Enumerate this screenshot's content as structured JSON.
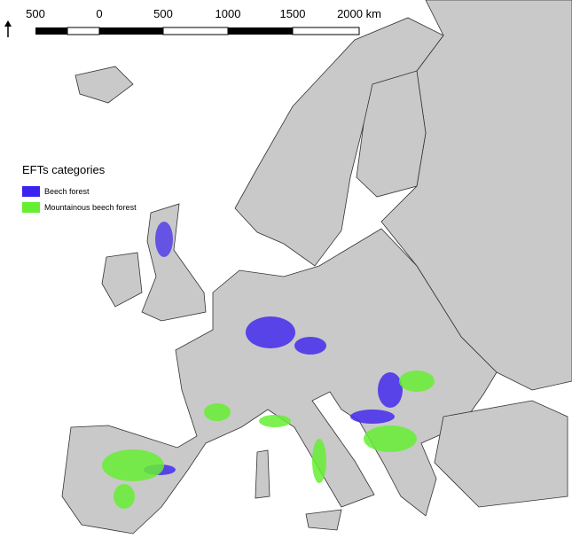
{
  "scale_bar": {
    "labels": [
      "500",
      "0",
      "500",
      "1000",
      "1500",
      "2000 km"
    ]
  },
  "legend": {
    "title": "EFTs categories",
    "items": [
      {
        "label": "Beech forest",
        "color": "#3b22f0"
      },
      {
        "label": "Mountainous beech forest",
        "color": "#66ee33"
      }
    ]
  }
}
